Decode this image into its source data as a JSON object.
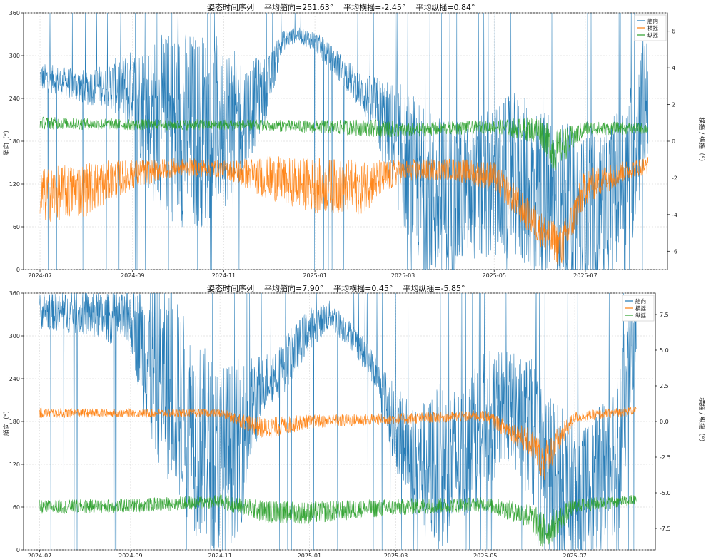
{
  "chart_data": [
    {
      "type": "line",
      "title": "姿态时间序列    平均艏向=251.63°    平均横摇=-2.45°    平均纵摇=0.84°",
      "ylabel_left": "艏向（°）",
      "ylabel_right": "横摇 / 纵摇（°）",
      "x_ticks": [
        "2024-07",
        "2024-09",
        "2024-11",
        "2025-01",
        "2025-03",
        "2025-05",
        "2025-07"
      ],
      "y_left_ticks": [
        "0",
        "60",
        "120",
        "180",
        "240",
        "300",
        "360"
      ],
      "y_right_ticks": [
        "-6",
        "-4",
        "-2",
        "0",
        "2",
        "4",
        "6"
      ],
      "ylim_left": [
        0,
        360
      ],
      "ylim_right": [
        -7,
        7
      ],
      "xlim": [
        "2024-06-20",
        "2025-08-25"
      ],
      "grid": true,
      "legend": "top-right",
      "colors": {
        "heading": "#1f77b4",
        "roll": "#ff7f0e",
        "pitch": "#2ca02c"
      },
      "series": [
        {
          "name": "艏向",
          "axis": "left",
          "color": "#1f77b4",
          "x": [
            "2024-07-01",
            "2024-07-15",
            "2024-08-01",
            "2024-08-15",
            "2024-09-01",
            "2024-09-15",
            "2024-10-01",
            "2024-10-15",
            "2024-11-01",
            "2024-11-15",
            "2024-12-01",
            "2024-12-10",
            "2024-12-20",
            "2025-01-01",
            "2025-01-15",
            "2025-02-01",
            "2025-02-15",
            "2025-03-01",
            "2025-03-15",
            "2025-04-01",
            "2025-04-15",
            "2025-05-01",
            "2025-05-15",
            "2025-06-01",
            "2025-06-15",
            "2025-07-01",
            "2025-07-15",
            "2025-08-01",
            "2025-08-12"
          ],
          "values": [
            270,
            265,
            255,
            260,
            250,
            205,
            200,
            195,
            205,
            215,
            260,
            320,
            330,
            320,
            290,
            250,
            210,
            160,
            110,
            90,
            105,
            120,
            130,
            110,
            90,
            70,
            90,
            150,
            260
          ],
          "spread": [
            20,
            20,
            25,
            30,
            60,
            120,
            140,
            140,
            120,
            80,
            40,
            15,
            10,
            15,
            20,
            25,
            60,
            100,
            120,
            120,
            100,
            110,
            120,
            120,
            120,
            120,
            110,
            120,
            100
          ]
        },
        {
          "name": "横摇",
          "axis": "right",
          "color": "#ff7f0e",
          "x": [
            "2024-07-01",
            "2024-08-01",
            "2024-09-01",
            "2024-10-01",
            "2024-11-01",
            "2024-12-01",
            "2025-01-01",
            "2025-02-01",
            "2025-03-01",
            "2025-04-01",
            "2025-05-01",
            "2025-06-01",
            "2025-06-15",
            "2025-07-01",
            "2025-08-01",
            "2025-08-12"
          ],
          "values": [
            -3.0,
            -2.6,
            -1.8,
            -1.4,
            -1.5,
            -2.0,
            -2.4,
            -2.5,
            -1.6,
            -1.5,
            -1.9,
            -4.8,
            -5.8,
            -2.5,
            -1.5,
            -1.3
          ],
          "spread": [
            1.5,
            1.5,
            0.8,
            0.5,
            0.5,
            1.2,
            1.5,
            1.5,
            0.6,
            0.6,
            0.8,
            1.0,
            1.2,
            1.0,
            0.5,
            0.5
          ]
        },
        {
          "name": "纵摇",
          "axis": "right",
          "color": "#2ca02c",
          "x": [
            "2024-07-01",
            "2024-09-01",
            "2024-11-01",
            "2025-01-01",
            "2025-02-15",
            "2025-03-01",
            "2025-05-01",
            "2025-06-01",
            "2025-06-10",
            "2025-07-01",
            "2025-08-12"
          ],
          "values": [
            1.0,
            0.9,
            0.9,
            0.8,
            0.7,
            0.6,
            0.8,
            0.6,
            -0.6,
            0.7,
            0.7
          ],
          "spread": [
            0.35,
            0.3,
            0.3,
            0.35,
            0.5,
            0.4,
            0.35,
            0.8,
            1.2,
            0.4,
            0.3
          ]
        }
      ]
    },
    {
      "type": "line",
      "title": "姿态时间序列    平均艏向=7.90°    平均横摇=0.45°    平均纵摇=-5.85°",
      "ylabel_left": "艏向（°）",
      "ylabel_right": "横摇 / 纵摇（°）",
      "x_ticks": [
        "2024-07",
        "2024-09",
        "2024-11",
        "2025-01",
        "2025-03",
        "2025-05",
        "2025-07"
      ],
      "y_left_ticks": [
        "0",
        "60",
        "120",
        "180",
        "240",
        "300",
        "360"
      ],
      "y_right_ticks": [
        "-7.5",
        "-5.0",
        "-2.5",
        "0.0",
        "2.5",
        "5.0",
        "7.5"
      ],
      "ylim_left": [
        0,
        360
      ],
      "ylim_right": [
        -9,
        9
      ],
      "xlim": [
        "2024-06-20",
        "2025-08-25"
      ],
      "grid": true,
      "legend": "top-right",
      "colors": {
        "heading": "#1f77b4",
        "roll": "#ff7f0e",
        "pitch": "#2ca02c"
      },
      "series": [
        {
          "name": "艏向",
          "axis": "left",
          "color": "#1f77b4",
          "x": [
            "2024-07-01",
            "2024-08-01",
            "2024-09-01",
            "2024-09-15",
            "2024-10-01",
            "2024-10-15",
            "2024-11-01",
            "2024-11-15",
            "2024-12-01",
            "2024-12-15",
            "2025-01-01",
            "2025-01-15",
            "2025-02-01",
            "2025-02-15",
            "2025-03-01",
            "2025-03-15",
            "2025-04-01",
            "2025-04-15",
            "2025-05-01",
            "2025-05-15",
            "2025-06-01",
            "2025-06-15",
            "2025-07-01",
            "2025-07-15",
            "2025-08-01",
            "2025-08-12"
          ],
          "values": [
            335,
            330,
            320,
            260,
            220,
            160,
            120,
            150,
            235,
            260,
            310,
            330,
            295,
            250,
            170,
            120,
            115,
            130,
            180,
            200,
            170,
            100,
            60,
            90,
            150,
            330
          ],
          "spread": [
            25,
            30,
            40,
            120,
            140,
            140,
            140,
            120,
            40,
            40,
            30,
            20,
            20,
            25,
            60,
            80,
            120,
            100,
            100,
            80,
            100,
            120,
            120,
            100,
            120,
            60
          ]
        },
        {
          "name": "横摇",
          "axis": "right",
          "color": "#ff7f0e",
          "x": [
            "2024-07-01",
            "2024-09-01",
            "2024-11-01",
            "2024-12-01",
            "2025-01-01",
            "2025-03-01",
            "2025-05-01",
            "2025-06-01",
            "2025-06-10",
            "2025-07-01",
            "2025-08-12"
          ],
          "values": [
            0.6,
            0.6,
            0.6,
            -0.5,
            0.0,
            0.2,
            0.4,
            -1.5,
            -2.8,
            0.3,
            0.8
          ],
          "spread": [
            0.35,
            0.3,
            0.3,
            0.8,
            0.5,
            0.4,
            0.4,
            1.0,
            1.5,
            0.4,
            0.3
          ]
        },
        {
          "name": "纵摇",
          "axis": "right",
          "color": "#2ca02c",
          "x": [
            "2024-07-01",
            "2024-09-01",
            "2024-11-01",
            "2024-12-01",
            "2025-01-01",
            "2025-03-01",
            "2025-05-01",
            "2025-06-01",
            "2025-06-10",
            "2025-07-01",
            "2025-08-12"
          ],
          "values": [
            -6.0,
            -5.9,
            -5.6,
            -6.3,
            -6.4,
            -6.0,
            -5.8,
            -6.6,
            -7.8,
            -5.9,
            -5.5
          ],
          "spread": [
            0.5,
            0.5,
            0.5,
            0.8,
            0.8,
            0.6,
            0.5,
            0.9,
            1.4,
            0.5,
            0.4
          ]
        }
      ]
    }
  ]
}
